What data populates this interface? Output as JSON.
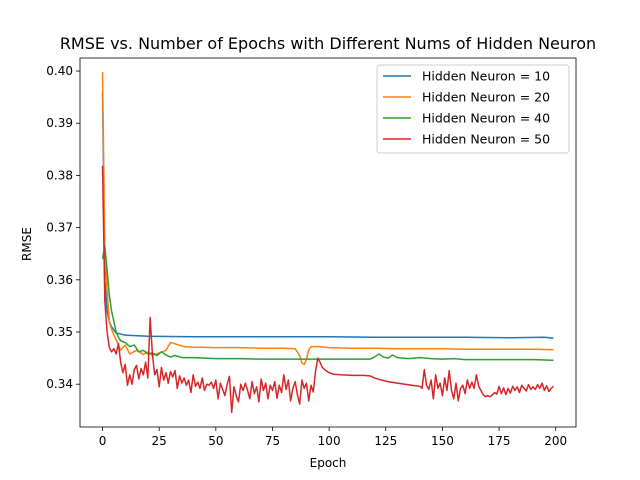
{
  "chart_data": {
    "type": "line",
    "title": "RMSE vs. Number of Epochs with Different Nums of Hidden Neuron",
    "xlabel": "Epoch",
    "ylabel": "RMSE",
    "xlim": [
      -9.95,
      208.95
    ],
    "ylim": [
      0.3318,
      0.4025
    ],
    "xticks": [
      0,
      25,
      50,
      75,
      100,
      125,
      150,
      175,
      200
    ],
    "xtick_labels": [
      "0",
      "25",
      "50",
      "75",
      "100",
      "125",
      "150",
      "175",
      "200"
    ],
    "yticks": [
      0.34,
      0.35,
      0.36,
      0.37,
      0.38,
      0.39,
      0.4
    ],
    "ytick_labels": [
      "0.34",
      "0.35",
      "0.36",
      "0.37",
      "0.38",
      "0.39",
      "0.40"
    ],
    "grid": false,
    "legend_position": "top-right",
    "series": [
      {
        "name": "Hidden Neuron = 10",
        "color": "#1f77b4",
        "points": [
          [
            0,
            0.396
          ],
          [
            1,
            0.36
          ],
          [
            2,
            0.354
          ],
          [
            3,
            0.352
          ],
          [
            4,
            0.351
          ],
          [
            6,
            0.3498
          ],
          [
            10,
            0.3494
          ],
          [
            20,
            0.3492
          ],
          [
            40,
            0.3491
          ],
          [
            60,
            0.3491
          ],
          [
            80,
            0.3491
          ],
          [
            100,
            0.3491
          ],
          [
            120,
            0.349
          ],
          [
            140,
            0.349
          ],
          [
            160,
            0.349
          ],
          [
            180,
            0.3489
          ],
          [
            195,
            0.349
          ],
          [
            199,
            0.3488
          ]
        ]
      },
      {
        "name": "Hidden Neuron = 20",
        "color": "#ff7f0e",
        "points": [
          [
            0,
            0.3998
          ],
          [
            1,
            0.366
          ],
          [
            2,
            0.358
          ],
          [
            3,
            0.352
          ],
          [
            4,
            0.3505
          ],
          [
            6,
            0.3485
          ],
          [
            8,
            0.3465
          ],
          [
            10,
            0.3475
          ],
          [
            12,
            0.3458
          ],
          [
            15,
            0.3465
          ],
          [
            18,
            0.3457
          ],
          [
            20,
            0.3462
          ],
          [
            22,
            0.3455
          ],
          [
            25,
            0.346
          ],
          [
            28,
            0.3465
          ],
          [
            30,
            0.348
          ],
          [
            33,
            0.3476
          ],
          [
            36,
            0.3472
          ],
          [
            40,
            0.3471
          ],
          [
            50,
            0.347
          ],
          [
            60,
            0.347
          ],
          [
            70,
            0.3469
          ],
          [
            80,
            0.3469
          ],
          [
            85,
            0.3468
          ],
          [
            87,
            0.3455
          ],
          [
            88,
            0.344
          ],
          [
            89,
            0.3438
          ],
          [
            90,
            0.3448
          ],
          [
            91,
            0.3466
          ],
          [
            92,
            0.3472
          ],
          [
            95,
            0.3472
          ],
          [
            100,
            0.347
          ],
          [
            110,
            0.3469
          ],
          [
            120,
            0.3469
          ],
          [
            130,
            0.3468
          ],
          [
            140,
            0.3468
          ],
          [
            150,
            0.3468
          ],
          [
            160,
            0.3467
          ],
          [
            170,
            0.3467
          ],
          [
            180,
            0.3467
          ],
          [
            190,
            0.3467
          ],
          [
            199,
            0.3466
          ]
        ]
      },
      {
        "name": "Hidden Neuron = 40",
        "color": "#2ca02c",
        "points": [
          [
            0,
            0.364
          ],
          [
            1,
            0.3665
          ],
          [
            2,
            0.362
          ],
          [
            3,
            0.357
          ],
          [
            4,
            0.354
          ],
          [
            5,
            0.352
          ],
          [
            6,
            0.35
          ],
          [
            7,
            0.349
          ],
          [
            8,
            0.3483
          ],
          [
            10,
            0.348
          ],
          [
            12,
            0.3472
          ],
          [
            14,
            0.3475
          ],
          [
            16,
            0.3462
          ],
          [
            18,
            0.3465
          ],
          [
            20,
            0.3458
          ],
          [
            22,
            0.346
          ],
          [
            24,
            0.3455
          ],
          [
            26,
            0.3462
          ],
          [
            28,
            0.3456
          ],
          [
            30,
            0.3452
          ],
          [
            32,
            0.3455
          ],
          [
            35,
            0.3451
          ],
          [
            40,
            0.3451
          ],
          [
            45,
            0.345
          ],
          [
            50,
            0.3449
          ],
          [
            60,
            0.3449
          ],
          [
            70,
            0.3448
          ],
          [
            80,
            0.3448
          ],
          [
            90,
            0.3448
          ],
          [
            100,
            0.3448
          ],
          [
            110,
            0.3448
          ],
          [
            118,
            0.3448
          ],
          [
            120,
            0.3452
          ],
          [
            122,
            0.3458
          ],
          [
            124,
            0.3452
          ],
          [
            126,
            0.345
          ],
          [
            128,
            0.3456
          ],
          [
            130,
            0.3451
          ],
          [
            135,
            0.3449
          ],
          [
            140,
            0.3451
          ],
          [
            145,
            0.3449
          ],
          [
            150,
            0.3448
          ],
          [
            155,
            0.3449
          ],
          [
            160,
            0.3447
          ],
          [
            170,
            0.3447
          ],
          [
            180,
            0.3447
          ],
          [
            190,
            0.3447
          ],
          [
            199,
            0.3446
          ]
        ]
      },
      {
        "name": "Hidden Neuron = 50",
        "color": "#d62728",
        "points": [
          [
            0,
            0.3818
          ],
          [
            1,
            0.356
          ],
          [
            2,
            0.35
          ],
          [
            3,
            0.347
          ],
          [
            4,
            0.3462
          ],
          [
            5,
            0.3468
          ],
          [
            6,
            0.3458
          ],
          [
            7,
            0.3478
          ],
          [
            8,
            0.3442
          ],
          [
            9,
            0.3422
          ],
          [
            10,
            0.3438
          ],
          [
            11,
            0.3398
          ],
          [
            12,
            0.3418
          ],
          [
            13,
            0.34
          ],
          [
            14,
            0.3428
          ],
          [
            15,
            0.3436
          ],
          [
            16,
            0.341
          ],
          [
            17,
            0.343
          ],
          [
            18,
            0.3418
          ],
          [
            19,
            0.3442
          ],
          [
            20,
            0.3412
          ],
          [
            21,
            0.3528
          ],
          [
            22,
            0.3458
          ],
          [
            23,
            0.3418
          ],
          [
            24,
            0.3428
          ],
          [
            25,
            0.3395
          ],
          [
            26,
            0.3432
          ],
          [
            27,
            0.3408
          ],
          [
            28,
            0.3422
          ],
          [
            29,
            0.3402
          ],
          [
            30,
            0.3424
          ],
          [
            31,
            0.3414
          ],
          [
            32,
            0.3426
          ],
          [
            33,
            0.3392
          ],
          [
            34,
            0.3416
          ],
          [
            35,
            0.3402
          ],
          [
            36,
            0.3412
          ],
          [
            37,
            0.3398
          ],
          [
            38,
            0.3408
          ],
          [
            39,
            0.3384
          ],
          [
            40,
            0.3418
          ],
          [
            41,
            0.3396
          ],
          [
            42,
            0.3404
          ],
          [
            43,
            0.3392
          ],
          [
            44,
            0.3412
          ],
          [
            45,
            0.3388
          ],
          [
            46,
            0.34
          ],
          [
            47,
            0.3398
          ],
          [
            48,
            0.3404
          ],
          [
            49,
            0.3392
          ],
          [
            50,
            0.3408
          ],
          [
            51,
            0.3372
          ],
          [
            52,
            0.3402
          ],
          [
            53,
            0.339
          ],
          [
            54,
            0.3378
          ],
          [
            55,
            0.34
          ],
          [
            56,
            0.3415
          ],
          [
            57,
            0.3346
          ],
          [
            58,
            0.3395
          ],
          [
            59,
            0.3378
          ],
          [
            60,
            0.3366
          ],
          [
            61,
            0.34
          ],
          [
            62,
            0.3388
          ],
          [
            63,
            0.3402
          ],
          [
            64,
            0.3388
          ],
          [
            65,
            0.3372
          ],
          [
            66,
            0.3405
          ],
          [
            67,
            0.3382
          ],
          [
            68,
            0.3395
          ],
          [
            69,
            0.3366
          ],
          [
            70,
            0.341
          ],
          [
            71,
            0.3388
          ],
          [
            72,
            0.3402
          ],
          [
            73,
            0.3372
          ],
          [
            74,
            0.3398
          ],
          [
            75,
            0.3388
          ],
          [
            76,
            0.3405
          ],
          [
            77,
            0.3373
          ],
          [
            78,
            0.3398
          ],
          [
            79,
            0.3384
          ],
          [
            80,
            0.3418
          ],
          [
            81,
            0.339
          ],
          [
            82,
            0.3408
          ],
          [
            83,
            0.3368
          ],
          [
            84,
            0.3392
          ],
          [
            85,
            0.3405
          ],
          [
            86,
            0.338
          ],
          [
            87,
            0.3362
          ],
          [
            88,
            0.3408
          ],
          [
            89,
            0.3392
          ],
          [
            90,
            0.3402
          ],
          [
            91,
            0.3368
          ],
          [
            92,
            0.3398
          ],
          [
            93,
            0.3385
          ],
          [
            94,
            0.3425
          ],
          [
            95,
            0.345
          ],
          [
            96,
            0.3442
          ],
          [
            97,
            0.3432
          ],
          [
            98,
            0.3428
          ],
          [
            100,
            0.3422
          ],
          [
            102,
            0.3419
          ],
          [
            105,
            0.3418
          ],
          [
            110,
            0.3417
          ],
          [
            115,
            0.3417
          ],
          [
            118,
            0.3416
          ],
          [
            120,
            0.3412
          ],
          [
            123,
            0.3408
          ],
          [
            126,
            0.3405
          ],
          [
            130,
            0.3402
          ],
          [
            135,
            0.3399
          ],
          [
            138,
            0.3397
          ],
          [
            140,
            0.3396
          ],
          [
            141,
            0.3392
          ],
          [
            142,
            0.3428
          ],
          [
            143,
            0.3398
          ],
          [
            144,
            0.339
          ],
          [
            145,
            0.3408
          ],
          [
            146,
            0.3372
          ],
          [
            147,
            0.3418
          ],
          [
            148,
            0.3392
          ],
          [
            149,
            0.3402
          ],
          [
            150,
            0.3378
          ],
          [
            151,
            0.3412
          ],
          [
            152,
            0.3388
          ],
          [
            153,
            0.3426
          ],
          [
            154,
            0.3388
          ],
          [
            155,
            0.3372
          ],
          [
            156,
            0.3402
          ],
          [
            157,
            0.3368
          ],
          [
            158,
            0.3392
          ],
          [
            159,
            0.3398
          ],
          [
            160,
            0.3382
          ],
          [
            161,
            0.3408
          ],
          [
            162,
            0.3392
          ],
          [
            163,
            0.3404
          ],
          [
            164,
            0.3392
          ],
          [
            165,
            0.3418
          ],
          [
            166,
            0.3396
          ],
          [
            167,
            0.3388
          ],
          [
            168,
            0.338
          ],
          [
            169,
            0.3376
          ],
          [
            170,
            0.3378
          ],
          [
            171,
            0.3376
          ],
          [
            172,
            0.3379
          ],
          [
            173,
            0.3384
          ],
          [
            174,
            0.3381
          ],
          [
            175,
            0.3396
          ],
          [
            176,
            0.3382
          ],
          [
            177,
            0.3393
          ],
          [
            178,
            0.338
          ],
          [
            179,
            0.3392
          ],
          [
            180,
            0.3383
          ],
          [
            181,
            0.3396
          ],
          [
            182,
            0.3388
          ],
          [
            183,
            0.3395
          ],
          [
            184,
            0.3384
          ],
          [
            185,
            0.3398
          ],
          [
            186,
            0.3392
          ],
          [
            187,
            0.3387
          ],
          [
            188,
            0.3399
          ],
          [
            189,
            0.339
          ],
          [
            190,
            0.3395
          ],
          [
            191,
            0.339
          ],
          [
            192,
            0.3399
          ],
          [
            193,
            0.3392
          ],
          [
            194,
            0.3402
          ],
          [
            195,
            0.3388
          ],
          [
            196,
            0.3397
          ],
          [
            197,
            0.3386
          ],
          [
            198,
            0.3392
          ],
          [
            199,
            0.3396
          ]
        ]
      }
    ]
  }
}
